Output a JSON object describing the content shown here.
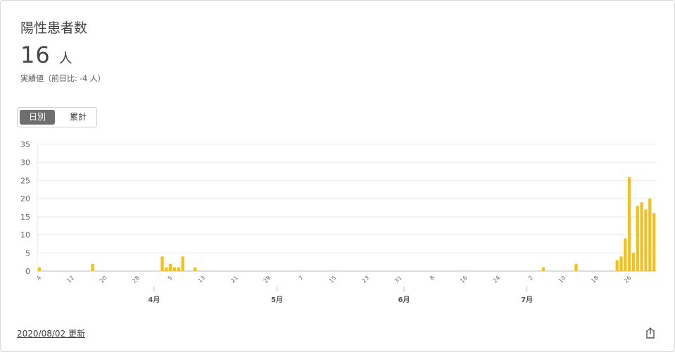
{
  "header": {
    "title": "陽性患者数",
    "value": "16",
    "unit": "人",
    "sub": "実績値（前日比: -4 人）"
  },
  "toggle": {
    "daily": "日別",
    "cumulative": "累計"
  },
  "footer": {
    "updated": "2020/08/02 更新"
  },
  "icons": {
    "share": "share-icon"
  },
  "colors": {
    "bar": "#f5bf14",
    "grid": "#e8e8e8",
    "axis": "#bbbbbb",
    "text": "#666666"
  },
  "chart_data": {
    "type": "bar",
    "yticks": [
      "0",
      "5",
      "10",
      "15",
      "20",
      "25",
      "30",
      "35"
    ],
    "ylim": [
      0,
      35
    ],
    "grid": true,
    "day_tick_labels": [
      "4",
      "12",
      "20",
      "28",
      "5",
      "13",
      "21",
      "29",
      "7",
      "15",
      "23",
      "31",
      "8",
      "16",
      "24",
      "2",
      "10",
      "18",
      "26"
    ],
    "month_labels": [
      "4月",
      "5月",
      "6月",
      "7月"
    ],
    "values": [
      1,
      0,
      0,
      0,
      0,
      0,
      0,
      0,
      0,
      0,
      0,
      0,
      0,
      2,
      0,
      0,
      0,
      0,
      0,
      0,
      0,
      0,
      0,
      0,
      0,
      0,
      0,
      0,
      0,
      0,
      4,
      1,
      2,
      1,
      1,
      4,
      0,
      0,
      1,
      0,
      0,
      0,
      0,
      0,
      0,
      0,
      0,
      0,
      0,
      0,
      0,
      0,
      0,
      0,
      0,
      0,
      0,
      0,
      0,
      0,
      0,
      0,
      0,
      0,
      0,
      0,
      0,
      0,
      0,
      0,
      0,
      0,
      0,
      0,
      0,
      0,
      0,
      0,
      0,
      0,
      0,
      0,
      0,
      0,
      0,
      0,
      0,
      0,
      0,
      0,
      0,
      0,
      0,
      0,
      0,
      0,
      0,
      0,
      0,
      0,
      0,
      0,
      0,
      0,
      0,
      0,
      0,
      0,
      0,
      0,
      0,
      0,
      0,
      0,
      0,
      0,
      0,
      0,
      0,
      0,
      0,
      0,
      0,
      1,
      0,
      0,
      0,
      0,
      0,
      0,
      0,
      2,
      0,
      0,
      0,
      0,
      0,
      0,
      0,
      0,
      0,
      3,
      4,
      9,
      26,
      5,
      18,
      19,
      17,
      20,
      16
    ]
  }
}
